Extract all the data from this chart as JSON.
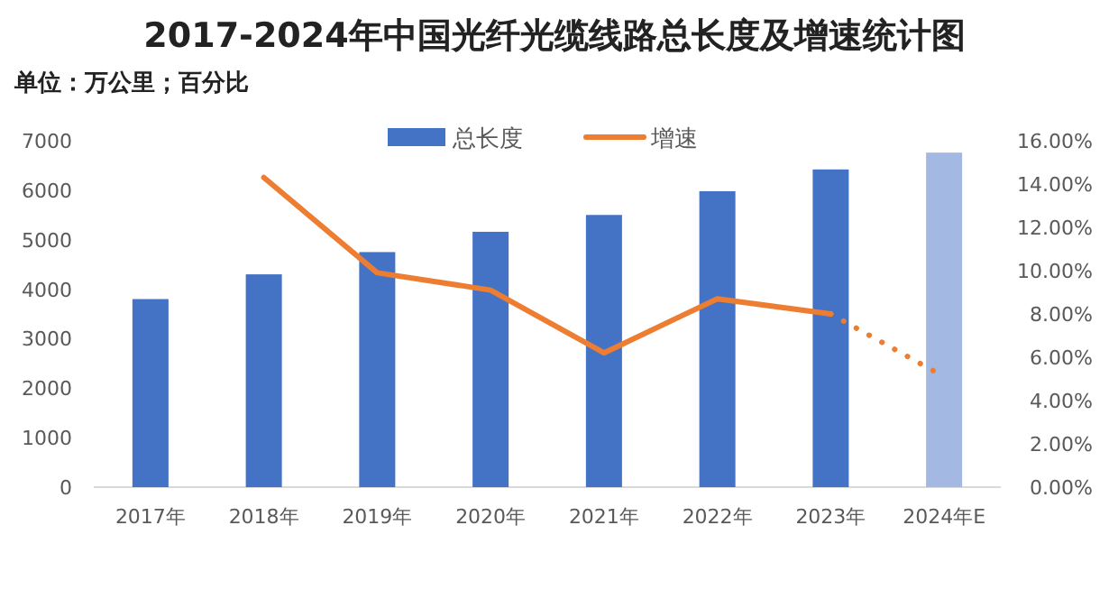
{
  "chart_data": {
    "type": "bar",
    "title": "2017-2024年中国光纤光缆线路总长度及增速统计图",
    "subtitle": "单位：万公里；百分比",
    "categories": [
      "2017年",
      "2018年",
      "2019年",
      "2020年",
      "2021年",
      "2022年",
      "2023年",
      "2024年E"
    ],
    "ylim": [
      0,
      7000
    ],
    "yticks": [
      0,
      1000,
      2000,
      3000,
      4000,
      5000,
      6000,
      7000
    ],
    "y2lim": [
      0,
      16
    ],
    "y2ticks": [
      {
        "value": 0,
        "label": "0.00%"
      },
      {
        "value": 2,
        "label": "2.00%"
      },
      {
        "value": 4,
        "label": "4.00%"
      },
      {
        "value": 6,
        "label": "6.00%"
      },
      {
        "value": 8,
        "label": "8.00%"
      },
      {
        "value": 10,
        "label": "10.00%"
      },
      {
        "value": 12,
        "label": "12.00%"
      },
      {
        "value": 14,
        "label": "14.00%"
      },
      {
        "value": 16,
        "label": "16.00%"
      }
    ],
    "legend": "top",
    "grid": false,
    "series": [
      {
        "name": "总长度",
        "colors": [
          "#4472c4",
          "#4472c4",
          "#4472c4",
          "#4472c4",
          "#4472c4",
          "#4472c4",
          "#4472c4",
          "#a3b8e3"
        ],
        "values": [
          3800,
          4300,
          4750,
          5160,
          5500,
          5980,
          6420,
          6760
        ]
      },
      {
        "name": "增速",
        "type": "line",
        "axis": "y2",
        "color": "#ed7d31",
        "line_style": "solid",
        "values": [
          null,
          14.3,
          9.9,
          9.1,
          6.2,
          8.7,
          8.0,
          null
        ]
      },
      {
        "type": "line",
        "axis": "y2",
        "color": "#ed7d31",
        "line_style": "dotted",
        "values": [
          null,
          null,
          null,
          null,
          null,
          null,
          8.0,
          5.1
        ]
      }
    ]
  }
}
